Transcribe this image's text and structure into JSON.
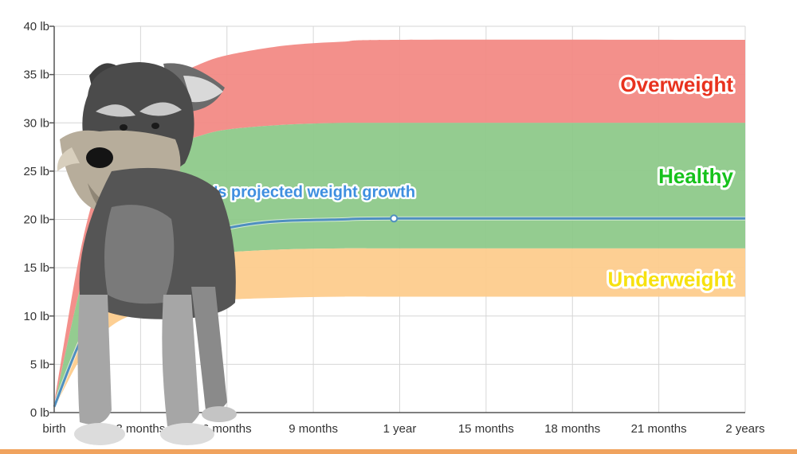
{
  "chart_data": {
    "type": "area",
    "x_ticks": [
      "birth",
      "3 months",
      "6 months",
      "9 months",
      "1 year",
      "15 months",
      "18 months",
      "21 months",
      "2 years"
    ],
    "y_ticks": [
      "0 lb",
      "5 lb",
      "10 lb",
      "15 lb",
      "20 lb",
      "25 lb",
      "30 lb",
      "35 lb",
      "40 lb"
    ],
    "xlim": [
      0,
      24
    ],
    "ylim": [
      0,
      40
    ],
    "grid": true,
    "bands": [
      {
        "name": "Overweight",
        "color": "#f28a85",
        "label_color": "#e8321e",
        "lower": [
          [
            0,
            0.7
          ],
          [
            1,
            14
          ],
          [
            2,
            22.5
          ],
          [
            3,
            25.5
          ],
          [
            4,
            27.5
          ],
          [
            5,
            28.6
          ],
          [
            6,
            29.3
          ],
          [
            8,
            29.8
          ],
          [
            10,
            30
          ],
          [
            12,
            30
          ],
          [
            24,
            30
          ]
        ],
        "upper": [
          [
            0,
            1.0
          ],
          [
            1,
            18
          ],
          [
            2,
            27.5
          ],
          [
            3,
            32
          ],
          [
            4,
            34.5
          ],
          [
            5,
            36
          ],
          [
            6,
            37
          ],
          [
            8,
            38
          ],
          [
            10,
            38.4
          ],
          [
            12,
            38.6
          ],
          [
            24,
            38.6
          ]
        ]
      },
      {
        "name": "Healthy",
        "color": "#8ec98a",
        "label_color": "#16c21c",
        "lower": [
          [
            0,
            0.5
          ],
          [
            1,
            8.5
          ],
          [
            2,
            12.5
          ],
          [
            3,
            14.5
          ],
          [
            4,
            15.6
          ],
          [
            5,
            16.2
          ],
          [
            6,
            16.6
          ],
          [
            8,
            16.9
          ],
          [
            10,
            17
          ],
          [
            12,
            17
          ],
          [
            24,
            17
          ]
        ],
        "upper": [
          [
            0,
            0.7
          ],
          [
            1,
            14
          ],
          [
            2,
            22.5
          ],
          [
            3,
            25.5
          ],
          [
            4,
            27.5
          ],
          [
            5,
            28.6
          ],
          [
            6,
            29.3
          ],
          [
            8,
            29.8
          ],
          [
            10,
            30
          ],
          [
            12,
            30
          ],
          [
            24,
            30
          ]
        ]
      },
      {
        "name": "Underweight",
        "color": "#fdcc8d",
        "label_color": "#f7e10f",
        "lower": [
          [
            0,
            0.4
          ],
          [
            1,
            6
          ],
          [
            2,
            9
          ],
          [
            3,
            10.4
          ],
          [
            4,
            11
          ],
          [
            5,
            11.4
          ],
          [
            6,
            11.7
          ],
          [
            8,
            11.9
          ],
          [
            10,
            12
          ],
          [
            12,
            12
          ],
          [
            24,
            12
          ]
        ],
        "upper": [
          [
            0,
            0.5
          ],
          [
            1,
            8.5
          ],
          [
            2,
            12.5
          ],
          [
            3,
            14.5
          ],
          [
            4,
            15.6
          ],
          [
            5,
            16.2
          ],
          [
            6,
            16.6
          ],
          [
            8,
            16.9
          ],
          [
            10,
            17
          ],
          [
            12,
            17
          ],
          [
            24,
            17
          ]
        ]
      }
    ],
    "growth_line": {
      "name": "Puppy's projected weight growth",
      "color": "#4f8fc0",
      "label_color": "#3f8fe0",
      "points": [
        [
          0,
          0.6
        ],
        [
          1,
          8
        ],
        [
          2,
          12.5
        ],
        [
          3,
          15.5
        ],
        [
          4,
          17.3
        ],
        [
          5,
          18.4
        ],
        [
          6,
          19.1
        ],
        [
          7,
          19.6
        ],
        [
          8,
          19.85
        ],
        [
          10,
          20
        ],
        [
          12,
          20.1
        ],
        [
          24,
          20.1
        ]
      ],
      "marker": [
        11.8,
        20.1
      ]
    }
  }
}
